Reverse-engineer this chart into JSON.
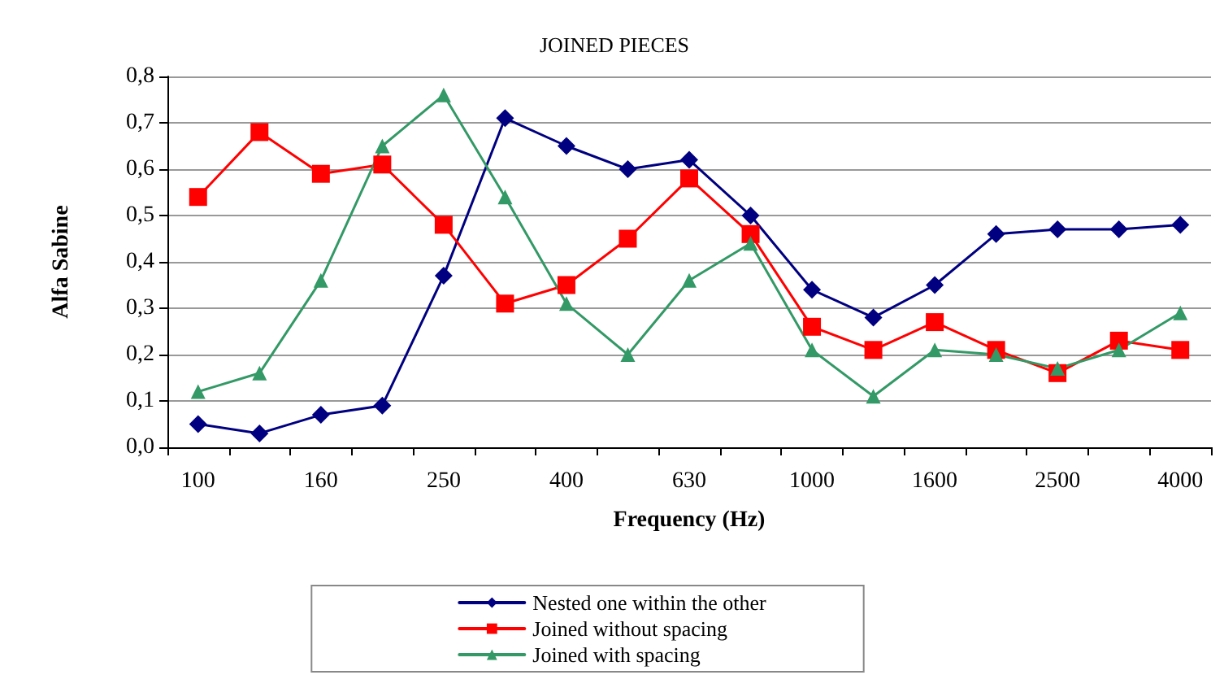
{
  "chart_data": {
    "type": "line",
    "title": "JOINED PIECES",
    "xlabel": "Frequency (Hz)",
    "ylabel": "Alfa Sabine",
    "categories": [
      "100",
      null,
      "160",
      null,
      "250",
      null,
      "400",
      null,
      "630",
      null,
      "1000",
      null,
      "1600",
      null,
      "2500",
      null,
      "4000"
    ],
    "series": [
      {
        "name": "Nested one within the other",
        "color": "#000080",
        "marker": "diamond",
        "values": [
          0.05,
          0.03,
          0.07,
          0.09,
          0.37,
          0.71,
          0.65,
          0.6,
          0.62,
          0.5,
          0.34,
          0.28,
          0.35,
          0.46,
          0.47,
          0.47,
          0.48
        ]
      },
      {
        "name": "Joined without spacing",
        "color": "#ff0000",
        "marker": "square",
        "values": [
          0.54,
          0.68,
          0.59,
          0.61,
          0.48,
          0.31,
          0.35,
          0.45,
          0.58,
          0.46,
          0.26,
          0.21,
          0.27,
          0.21,
          0.16,
          0.23,
          0.21
        ]
      },
      {
        "name": "Joined with spacing",
        "color": "#339966",
        "marker": "triangle",
        "values": [
          0.12,
          0.16,
          0.36,
          0.65,
          0.76,
          0.54,
          0.31,
          0.2,
          0.36,
          0.44,
          0.21,
          0.11,
          0.21,
          0.2,
          0.17,
          0.21,
          0.29
        ]
      }
    ],
    "ylim": [
      0,
      0.8
    ],
    "yticks": [
      {
        "value": 0,
        "label": "0,0"
      },
      {
        "value": 0.1,
        "label": "0,1"
      },
      {
        "value": 0.2,
        "label": "0,2"
      },
      {
        "value": 0.3,
        "label": "0,3"
      },
      {
        "value": 0.4,
        "label": "0,4"
      },
      {
        "value": 0.5,
        "label": "0,5"
      },
      {
        "value": 0.6,
        "label": "0,6"
      },
      {
        "value": 0.7,
        "label": "0,7"
      },
      {
        "value": 0.8,
        "label": "0,8"
      }
    ],
    "grid": "y",
    "legend": "bottom"
  }
}
